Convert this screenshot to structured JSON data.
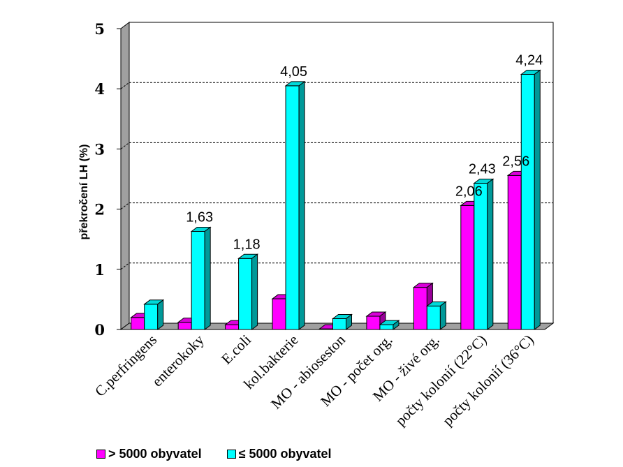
{
  "chart_data": {
    "type": "bar",
    "title": "",
    "xlabel": "",
    "ylabel": "překročení  LH (%)",
    "ylim": [
      0,
      5
    ],
    "yticks": [
      "0",
      "1",
      "2",
      "3",
      "4",
      "5"
    ],
    "categories": [
      "C.perfringens",
      "enterokoky",
      "E.coli",
      "kol.bakterie",
      "MO - abioseston",
      "MO - počet org.",
      "MO - živé org.",
      "počty kolonií (22°C)",
      "počty kolonií (36°C)"
    ],
    "series": [
      {
        "name": "> 5000 obyvatel",
        "color": "#ff00ff",
        "values": [
          0.2,
          0.12,
          0.08,
          0.51,
          0.01,
          0.22,
          0.7,
          2.06,
          2.56
        ],
        "labels": [
          "",
          "",
          "",
          "",
          "",
          "",
          "",
          "2,06",
          "2,56"
        ]
      },
      {
        "name": "≤ 5000 obyvatel",
        "color": "#00ffff",
        "values": [
          0.42,
          1.63,
          1.18,
          4.05,
          0.18,
          0.08,
          0.39,
          2.43,
          4.24
        ],
        "labels": [
          "",
          "1,63",
          "1,18",
          "4,05",
          "",
          "",
          "",
          "2,43",
          "4,24"
        ]
      }
    ],
    "gridlines": [
      1,
      2,
      3,
      4
    ],
    "legend_position": "bottom"
  }
}
